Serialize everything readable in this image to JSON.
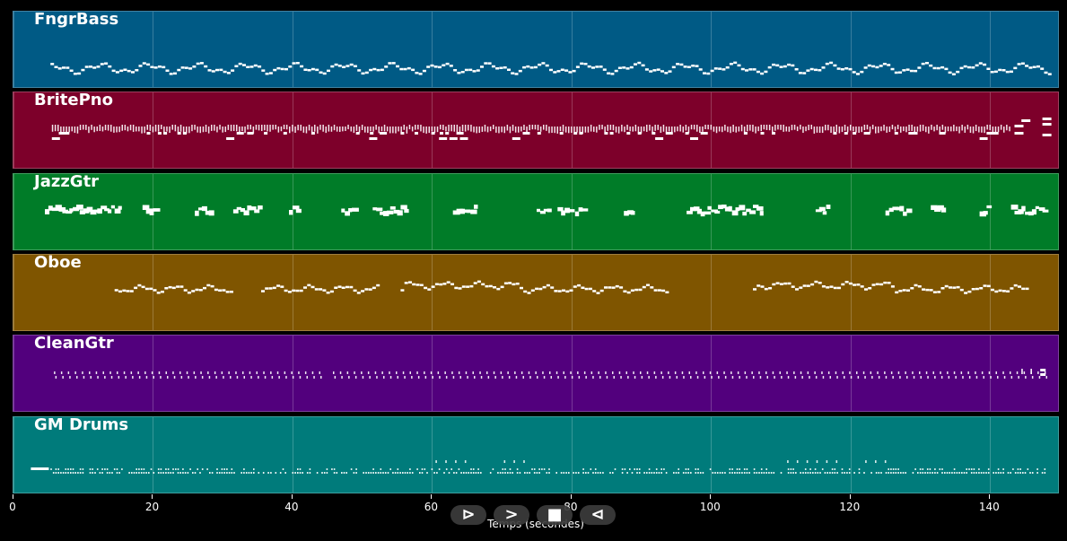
{
  "tracks": [
    {
      "name": "FngrBass",
      "color": "#005a85",
      "pattern": "bass"
    },
    {
      "name": "BritePno",
      "color": "#7d002a",
      "pattern": "piano"
    },
    {
      "name": "JazzGtr",
      "color": "#007c28",
      "pattern": "jazz"
    },
    {
      "name": "Oboe",
      "color": "#7f5500",
      "pattern": "oboe"
    },
    {
      "name": "CleanGtr",
      "color": "#52007d",
      "pattern": "clean"
    },
    {
      "name": "GM Drums",
      "color": "#007b7b",
      "pattern": "drums"
    }
  ],
  "time_axis": {
    "label": "Temps (secondes)",
    "range": [
      0,
      150
    ],
    "ticks": [
      0,
      20,
      40,
      60,
      80,
      100,
      120,
      140
    ]
  },
  "transport": {
    "buttons": [
      {
        "name": "play-button",
        "icon": "play-icon",
        "glyph": "⊳"
      },
      {
        "name": "fast-forward-button",
        "icon": "fast-forward-icon",
        "glyph": ">"
      },
      {
        "name": "stop-button",
        "icon": "stop-icon",
        "glyph": "■"
      },
      {
        "name": "rewind-button",
        "icon": "rewind-icon",
        "glyph": "⊲"
      }
    ]
  }
}
